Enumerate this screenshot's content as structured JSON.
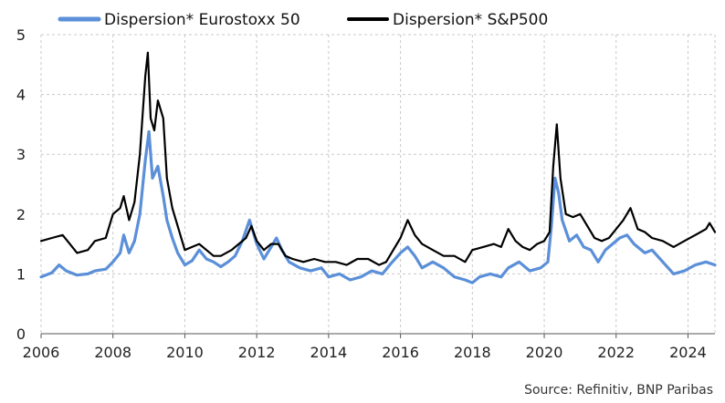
{
  "chart_data": {
    "type": "line",
    "title": "",
    "xlabel": "",
    "ylabel": "",
    "xlim": [
      2006,
      2024.75
    ],
    "ylim": [
      0,
      5
    ],
    "xticks": [
      "2006",
      "2008",
      "2010",
      "2012",
      "2014",
      "2016",
      "2018",
      "2020",
      "2022",
      "2024"
    ],
    "yticks": [
      "0",
      "1",
      "2",
      "3",
      "4",
      "5"
    ],
    "grid": "both, dashed",
    "legend_position": "top",
    "source": "Source: Refinitiv, BNP Paribas",
    "series": [
      {
        "name": "Dispersion* Eurostoxx 50",
        "color": "#5b8fd8",
        "points": [
          [
            2006.0,
            0.95
          ],
          [
            2006.3,
            1.02
          ],
          [
            2006.5,
            1.15
          ],
          [
            2006.7,
            1.05
          ],
          [
            2007.0,
            0.98
          ],
          [
            2007.3,
            1.0
          ],
          [
            2007.5,
            1.05
          ],
          [
            2007.8,
            1.08
          ],
          [
            2008.0,
            1.2
          ],
          [
            2008.2,
            1.35
          ],
          [
            2008.3,
            1.65
          ],
          [
            2008.45,
            1.35
          ],
          [
            2008.6,
            1.55
          ],
          [
            2008.75,
            2.0
          ],
          [
            2008.9,
            2.9
          ],
          [
            2009.0,
            3.38
          ],
          [
            2009.1,
            2.6
          ],
          [
            2009.25,
            2.8
          ],
          [
            2009.4,
            2.3
          ],
          [
            2009.5,
            1.9
          ],
          [
            2009.65,
            1.6
          ],
          [
            2009.8,
            1.35
          ],
          [
            2010.0,
            1.15
          ],
          [
            2010.2,
            1.22
          ],
          [
            2010.4,
            1.4
          ],
          [
            2010.6,
            1.25
          ],
          [
            2010.8,
            1.2
          ],
          [
            2011.0,
            1.12
          ],
          [
            2011.2,
            1.2
          ],
          [
            2011.4,
            1.3
          ],
          [
            2011.6,
            1.55
          ],
          [
            2011.8,
            1.9
          ],
          [
            2012.0,
            1.5
          ],
          [
            2012.2,
            1.25
          ],
          [
            2012.4,
            1.45
          ],
          [
            2012.55,
            1.6
          ],
          [
            2012.7,
            1.4
          ],
          [
            2012.9,
            1.2
          ],
          [
            2013.2,
            1.1
          ],
          [
            2013.5,
            1.05
          ],
          [
            2013.8,
            1.1
          ],
          [
            2014.0,
            0.95
          ],
          [
            2014.3,
            1.0
          ],
          [
            2014.6,
            0.9
          ],
          [
            2014.9,
            0.95
          ],
          [
            2015.2,
            1.05
          ],
          [
            2015.5,
            1.0
          ],
          [
            2015.7,
            1.15
          ],
          [
            2016.0,
            1.35
          ],
          [
            2016.2,
            1.45
          ],
          [
            2016.4,
            1.3
          ],
          [
            2016.6,
            1.1
          ],
          [
            2016.9,
            1.2
          ],
          [
            2017.2,
            1.1
          ],
          [
            2017.5,
            0.95
          ],
          [
            2017.8,
            0.9
          ],
          [
            2018.0,
            0.85
          ],
          [
            2018.2,
            0.95
          ],
          [
            2018.5,
            1.0
          ],
          [
            2018.8,
            0.95
          ],
          [
            2019.0,
            1.1
          ],
          [
            2019.3,
            1.2
          ],
          [
            2019.6,
            1.05
          ],
          [
            2019.9,
            1.1
          ],
          [
            2020.1,
            1.2
          ],
          [
            2020.2,
            1.8
          ],
          [
            2020.3,
            2.6
          ],
          [
            2020.4,
            2.35
          ],
          [
            2020.5,
            1.9
          ],
          [
            2020.7,
            1.55
          ],
          [
            2020.9,
            1.65
          ],
          [
            2021.1,
            1.45
          ],
          [
            2021.3,
            1.4
          ],
          [
            2021.5,
            1.2
          ],
          [
            2021.7,
            1.4
          ],
          [
            2021.9,
            1.5
          ],
          [
            2022.1,
            1.6
          ],
          [
            2022.3,
            1.65
          ],
          [
            2022.5,
            1.5
          ],
          [
            2022.8,
            1.35
          ],
          [
            2023.0,
            1.4
          ],
          [
            2023.3,
            1.2
          ],
          [
            2023.6,
            1.0
          ],
          [
            2023.9,
            1.05
          ],
          [
            2024.2,
            1.15
          ],
          [
            2024.5,
            1.2
          ],
          [
            2024.75,
            1.15
          ]
        ]
      },
      {
        "name": "Dispersion* S&P500",
        "color": "#000000",
        "points": [
          [
            2006.0,
            1.55
          ],
          [
            2006.3,
            1.6
          ],
          [
            2006.6,
            1.65
          ],
          [
            2006.8,
            1.5
          ],
          [
            2007.0,
            1.35
          ],
          [
            2007.3,
            1.4
          ],
          [
            2007.5,
            1.55
          ],
          [
            2007.8,
            1.6
          ],
          [
            2008.0,
            2.0
          ],
          [
            2008.2,
            2.1
          ],
          [
            2008.3,
            2.3
          ],
          [
            2008.45,
            1.9
          ],
          [
            2008.6,
            2.2
          ],
          [
            2008.75,
            3.0
          ],
          [
            2008.9,
            4.3
          ],
          [
            2008.97,
            4.7
          ],
          [
            2009.05,
            3.6
          ],
          [
            2009.15,
            3.4
          ],
          [
            2009.25,
            3.9
          ],
          [
            2009.4,
            3.6
          ],
          [
            2009.5,
            2.6
          ],
          [
            2009.65,
            2.1
          ],
          [
            2009.8,
            1.8
          ],
          [
            2010.0,
            1.4
          ],
          [
            2010.2,
            1.45
          ],
          [
            2010.4,
            1.5
          ],
          [
            2010.6,
            1.4
          ],
          [
            2010.8,
            1.3
          ],
          [
            2011.0,
            1.3
          ],
          [
            2011.3,
            1.4
          ],
          [
            2011.5,
            1.5
          ],
          [
            2011.7,
            1.6
          ],
          [
            2011.85,
            1.8
          ],
          [
            2012.0,
            1.55
          ],
          [
            2012.2,
            1.4
          ],
          [
            2012.4,
            1.5
          ],
          [
            2012.6,
            1.5
          ],
          [
            2012.8,
            1.3
          ],
          [
            2013.0,
            1.25
          ],
          [
            2013.3,
            1.2
          ],
          [
            2013.6,
            1.25
          ],
          [
            2013.9,
            1.2
          ],
          [
            2014.2,
            1.2
          ],
          [
            2014.5,
            1.15
          ],
          [
            2014.8,
            1.25
          ],
          [
            2015.1,
            1.25
          ],
          [
            2015.4,
            1.15
          ],
          [
            2015.6,
            1.2
          ],
          [
            2015.8,
            1.4
          ],
          [
            2016.0,
            1.6
          ],
          [
            2016.2,
            1.9
          ],
          [
            2016.4,
            1.65
          ],
          [
            2016.6,
            1.5
          ],
          [
            2016.9,
            1.4
          ],
          [
            2017.2,
            1.3
          ],
          [
            2017.5,
            1.3
          ],
          [
            2017.8,
            1.2
          ],
          [
            2018.0,
            1.4
          ],
          [
            2018.3,
            1.45
          ],
          [
            2018.6,
            1.5
          ],
          [
            2018.8,
            1.45
          ],
          [
            2019.0,
            1.75
          ],
          [
            2019.2,
            1.55
          ],
          [
            2019.4,
            1.45
          ],
          [
            2019.6,
            1.4
          ],
          [
            2019.8,
            1.5
          ],
          [
            2020.0,
            1.55
          ],
          [
            2020.15,
            1.7
          ],
          [
            2020.25,
            2.8
          ],
          [
            2020.35,
            3.5
          ],
          [
            2020.45,
            2.6
          ],
          [
            2020.6,
            2.0
          ],
          [
            2020.8,
            1.95
          ],
          [
            2021.0,
            2.0
          ],
          [
            2021.2,
            1.8
          ],
          [
            2021.4,
            1.6
          ],
          [
            2021.6,
            1.55
          ],
          [
            2021.8,
            1.6
          ],
          [
            2022.0,
            1.75
          ],
          [
            2022.2,
            1.9
          ],
          [
            2022.4,
            2.1
          ],
          [
            2022.6,
            1.75
          ],
          [
            2022.8,
            1.7
          ],
          [
            2023.0,
            1.6
          ],
          [
            2023.3,
            1.55
          ],
          [
            2023.6,
            1.45
          ],
          [
            2023.9,
            1.55
          ],
          [
            2024.2,
            1.65
          ],
          [
            2024.5,
            1.75
          ],
          [
            2024.6,
            1.85
          ],
          [
            2024.75,
            1.7
          ]
        ]
      }
    ]
  }
}
